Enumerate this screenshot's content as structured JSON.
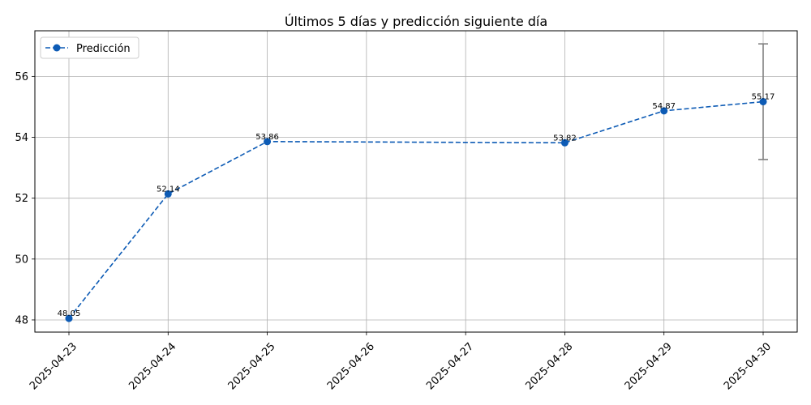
{
  "chart_data": {
    "type": "line",
    "title": "Últimos 5 días y predicción siguiente día",
    "xlabel": "",
    "ylabel": "",
    "x": [
      "2025-04-23",
      "2025-04-24",
      "2025-04-25",
      "2025-04-28",
      "2025-04-29",
      "2025-04-30"
    ],
    "x_ticks": [
      "2025-04-23",
      "2025-04-24",
      "2025-04-25",
      "2025-04-26",
      "2025-04-27",
      "2025-04-28",
      "2025-04-29",
      "2025-04-30"
    ],
    "series": [
      {
        "name": "Predicción",
        "values": [
          48.05,
          52.14,
          53.86,
          53.82,
          54.87,
          55.17
        ],
        "labels": [
          "48.05",
          "52.14",
          "53.86",
          "53.82",
          "54.87",
          "55.17"
        ],
        "color": "#0d5bb5",
        "line_style": "dashed",
        "marker": "circle"
      }
    ],
    "error_bar": {
      "x": "2025-04-30",
      "center": 55.17,
      "low": 53.27,
      "high": 57.07,
      "color": "#808080"
    },
    "ylim": [
      47.6,
      57.5
    ],
    "y_ticks": [
      48,
      50,
      52,
      54,
      56
    ],
    "grid": true,
    "legend_position": "top-left"
  }
}
